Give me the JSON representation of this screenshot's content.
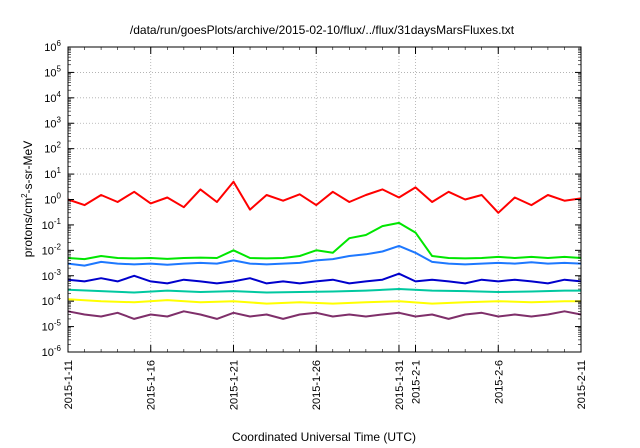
{
  "chart_data": {
    "type": "line",
    "title": "/data/run/goesPlots/archive/2015-02-10/flux/../flux/31daysMarsFluxes.txt",
    "xlabel": "Coordinated Universal Time (UTC)",
    "ylabel": {
      "base": "protons/cm",
      "sup": "2",
      "rest": "-s-sr-MeV"
    },
    "y_scale": "log",
    "ylim": [
      1e-06,
      1000000.0
    ],
    "x_start": "2015-01-11",
    "x_end": "2015-02-11",
    "grid": true,
    "x_ticks": [
      {
        "day": 0,
        "label": "2015-1-11"
      },
      {
        "day": 5,
        "label": "2015-1-16"
      },
      {
        "day": 10,
        "label": "2015-1-21"
      },
      {
        "day": 15,
        "label": "2015-1-26"
      },
      {
        "day": 20,
        "label": "2015-1-31"
      },
      {
        "day": 21,
        "label": "2015-2-1"
      },
      {
        "day": 26,
        "label": "2015-2-6"
      },
      {
        "day": 31,
        "label": "2015-2-11"
      }
    ],
    "y_ticks": [
      {
        "exp": -6,
        "base": "10",
        "sup": "-6"
      },
      {
        "exp": -5,
        "base": "10",
        "sup": "-5"
      },
      {
        "exp": -4,
        "base": "10",
        "sup": "-4"
      },
      {
        "exp": -3,
        "base": "10",
        "sup": "-3"
      },
      {
        "exp": -2,
        "base": "10",
        "sup": "-2"
      },
      {
        "exp": -1,
        "base": "10",
        "sup": "-1"
      },
      {
        "exp": 0,
        "base": "10",
        "sup": "0"
      },
      {
        "exp": 1,
        "base": "10",
        "sup": "1"
      },
      {
        "exp": 2,
        "base": "10",
        "sup": "2"
      },
      {
        "exp": 3,
        "base": "10",
        "sup": "3"
      },
      {
        "exp": 4,
        "base": "10",
        "sup": "4"
      },
      {
        "exp": 5,
        "base": "10",
        "sup": "5"
      },
      {
        "exp": 6,
        "base": "10",
        "sup": "6"
      }
    ],
    "series": [
      {
        "color": "#7f2f6a",
        "x": [
          0,
          1,
          2,
          3,
          4,
          5,
          6,
          7,
          8,
          9,
          10,
          11,
          12,
          13,
          14,
          15,
          16,
          17,
          18,
          19,
          20,
          21,
          22,
          23,
          24,
          25,
          26,
          27,
          28,
          29,
          30,
          31
        ],
        "y": [
          4e-05,
          3e-05,
          2.5e-05,
          3.5e-05,
          2e-05,
          3e-05,
          2.5e-05,
          4e-05,
          3e-05,
          2e-05,
          3.5e-05,
          2.5e-05,
          3e-05,
          2e-05,
          3e-05,
          3.5e-05,
          2.5e-05,
          3e-05,
          2.5e-05,
          3e-05,
          3.5e-05,
          2.5e-05,
          3e-05,
          2e-05,
          3e-05,
          3.5e-05,
          2.5e-05,
          3e-05,
          2.5e-05,
          3e-05,
          4e-05,
          3e-05
        ]
      },
      {
        "color": "#ffff00",
        "x": [
          0,
          2,
          4,
          6,
          8,
          10,
          12,
          14,
          16,
          18,
          20,
          22,
          24,
          26,
          28,
          30,
          31
        ],
        "y": [
          0.00012,
          0.0001,
          9e-05,
          0.00011,
          9e-05,
          0.0001,
          8e-05,
          9e-05,
          8e-05,
          9e-05,
          0.0001,
          8e-05,
          9e-05,
          0.0001,
          9e-05,
          0.0001,
          0.0001
        ]
      },
      {
        "color": "#00c8a0",
        "x": [
          0,
          2,
          4,
          6,
          8,
          10,
          12,
          14,
          16,
          18,
          20,
          22,
          24,
          26,
          28,
          30,
          31
        ],
        "y": [
          0.00028,
          0.00025,
          0.00022,
          0.00026,
          0.00023,
          0.00025,
          0.00022,
          0.00023,
          0.00024,
          0.00026,
          0.0003,
          0.00026,
          0.00025,
          0.00023,
          0.00024,
          0.00026,
          0.00026
        ]
      },
      {
        "color": "#0000cc",
        "x": [
          0,
          1,
          2,
          3,
          4,
          5,
          6,
          7,
          8,
          9,
          10,
          11,
          12,
          13,
          14,
          15,
          16,
          17,
          18,
          19,
          20,
          21,
          22,
          23,
          24,
          25,
          26,
          27,
          28,
          29,
          30,
          31
        ],
        "y": [
          0.0007,
          0.0006,
          0.0008,
          0.0006,
          0.001,
          0.0006,
          0.0005,
          0.0007,
          0.0006,
          0.0005,
          0.0006,
          0.0008,
          0.0005,
          0.0006,
          0.0005,
          0.0006,
          0.0007,
          0.0005,
          0.0006,
          0.0007,
          0.0012,
          0.0006,
          0.0007,
          0.0006,
          0.0005,
          0.0007,
          0.0006,
          0.0007,
          0.0006,
          0.0005,
          0.0007,
          0.0006
        ]
      },
      {
        "color": "#1e78ff",
        "x": [
          0,
          1,
          2,
          3,
          4,
          5,
          6,
          7,
          8,
          9,
          10,
          11,
          12,
          13,
          14,
          15,
          16,
          17,
          18,
          19,
          20,
          21,
          22,
          23,
          24,
          25,
          26,
          27,
          28,
          29,
          30,
          31
        ],
        "y": [
          0.003,
          0.0025,
          0.0035,
          0.003,
          0.0028,
          0.003,
          0.0027,
          0.003,
          0.0032,
          0.003,
          0.004,
          0.003,
          0.0028,
          0.003,
          0.0032,
          0.004,
          0.0045,
          0.006,
          0.007,
          0.009,
          0.015,
          0.008,
          0.0035,
          0.003,
          0.0028,
          0.003,
          0.0032,
          0.003,
          0.0034,
          0.003,
          0.0032,
          0.003
        ]
      },
      {
        "color": "#00e600",
        "x": [
          0,
          1,
          2,
          3,
          4,
          5,
          6,
          7,
          8,
          9,
          10,
          11,
          12,
          13,
          14,
          15,
          16,
          17,
          18,
          19,
          20,
          21,
          22,
          23,
          24,
          25,
          26,
          27,
          28,
          29,
          30,
          31
        ],
        "y": [
          0.005,
          0.0045,
          0.006,
          0.005,
          0.0048,
          0.005,
          0.0046,
          0.005,
          0.0052,
          0.005,
          0.01,
          0.005,
          0.0048,
          0.005,
          0.006,
          0.01,
          0.008,
          0.03,
          0.04,
          0.09,
          0.12,
          0.05,
          0.006,
          0.005,
          0.0048,
          0.005,
          0.0055,
          0.005,
          0.0055,
          0.005,
          0.0055,
          0.005
        ]
      },
      {
        "color": "#ff0000",
        "x": [
          0,
          1,
          2,
          3,
          4,
          5,
          6,
          7,
          8,
          9,
          10,
          11,
          12,
          13,
          14,
          15,
          16,
          17,
          18,
          19,
          20,
          21,
          22,
          23,
          24,
          25,
          26,
          27,
          28,
          29,
          30,
          31
        ],
        "y": [
          1,
          0.6,
          1.5,
          0.8,
          2,
          0.7,
          1.2,
          0.5,
          2.5,
          0.8,
          5,
          0.4,
          1.5,
          0.9,
          1.6,
          0.6,
          2,
          0.8,
          1.5,
          2.5,
          1.2,
          3,
          0.8,
          2,
          1,
          1.5,
          0.3,
          1.2,
          0.6,
          1.5,
          0.9,
          1.1
        ]
      }
    ]
  }
}
